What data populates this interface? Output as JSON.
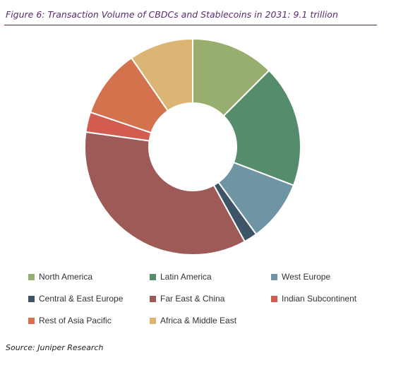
{
  "figure": {
    "title": "Figure 6: Transaction Volume of CBDCs and Stablecoins in 2031: 9.1 trillion",
    "source": "Source: Juniper Research"
  },
  "chart_data": {
    "type": "pie",
    "donut": true,
    "start": "12 o'clock",
    "direction": "clockwise",
    "title": "Figure 6: Transaction Volume of CBDCs and Stablecoins in 2031: 9.1 trillion",
    "legend_placement": "bottom",
    "series": [
      {
        "name": "North America",
        "share": 12.5,
        "color": "#97ae6e"
      },
      {
        "name": "Latin America",
        "share": 18.3,
        "color": "#558d6c"
      },
      {
        "name": "West Europe",
        "share": 9.2,
        "color": "#6f95a5"
      },
      {
        "name": "Central & East Europe",
        "share": 2.0,
        "color": "#3e5567"
      },
      {
        "name": "Far East & China",
        "share": 35.2,
        "color": "#9e5a57"
      },
      {
        "name": "Indian Subcontinent",
        "share": 3.0,
        "color": "#d25c4f"
      },
      {
        "name": "Rest of Asia Pacific",
        "share": 10.2,
        "color": "#d4724e"
      },
      {
        "name": "Africa & Middle East",
        "share": 9.6,
        "color": "#dcb574"
      }
    ]
  }
}
